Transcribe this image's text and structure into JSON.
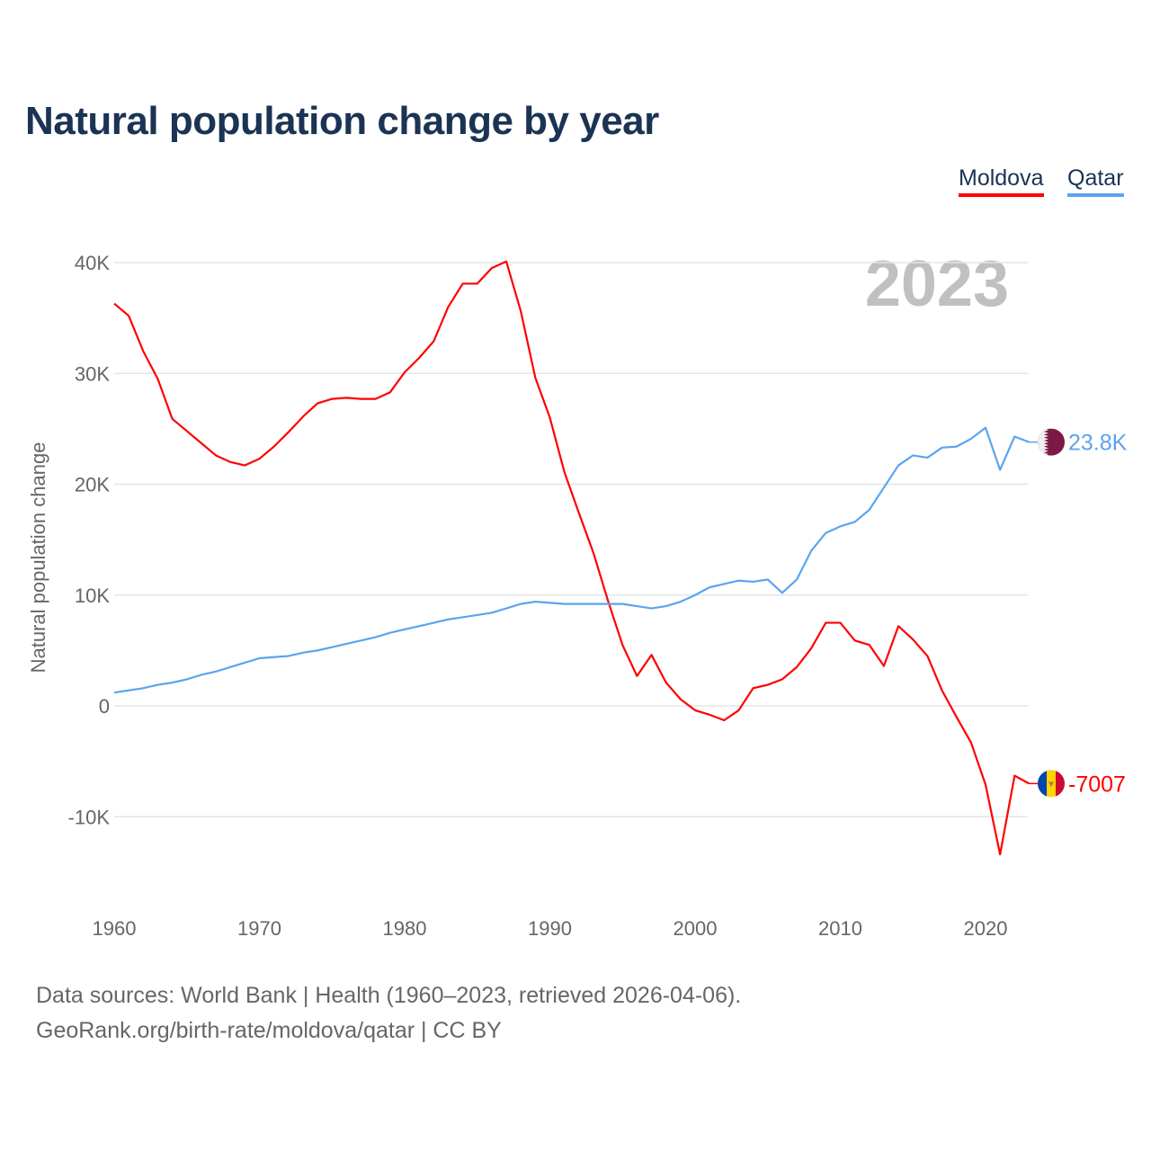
{
  "title": "Natural population change by year",
  "footer": {
    "line1": "Data sources: World Bank | Health (1960–2023, retrieved 2026-04-06).",
    "line2": "GeoRank.org/birth-rate/moldova/qatar | CC BY"
  },
  "chart_data": {
    "type": "line",
    "title": "Natural population change by year",
    "xlabel": "",
    "ylabel": "Natural population change",
    "year_watermark": "2023",
    "xlim": [
      1960,
      2023
    ],
    "ylim": [
      -15000,
      42000
    ],
    "grid": true,
    "legend_placement": "top-right",
    "x_ticks": [
      1960,
      1970,
      1980,
      1990,
      2000,
      2010,
      2020
    ],
    "x_tick_labels": [
      "1960",
      "1970",
      "1980",
      "1990",
      "2000",
      "2010",
      "2020"
    ],
    "y_ticks": [
      40000,
      30000,
      20000,
      10000,
      0,
      -10000
    ],
    "y_tick_labels": [
      "40K",
      "30K",
      "20K",
      "10K",
      "0",
      "-10K"
    ],
    "x": [
      1960,
      1961,
      1962,
      1963,
      1964,
      1965,
      1966,
      1967,
      1968,
      1969,
      1970,
      1971,
      1972,
      1973,
      1974,
      1975,
      1976,
      1977,
      1978,
      1979,
      1980,
      1981,
      1982,
      1983,
      1984,
      1985,
      1986,
      1987,
      1988,
      1989,
      1990,
      1991,
      1992,
      1993,
      1994,
      1995,
      1996,
      1997,
      1998,
      1999,
      2000,
      2001,
      2002,
      2003,
      2004,
      2005,
      2006,
      2007,
      2008,
      2009,
      2010,
      2011,
      2012,
      2013,
      2014,
      2015,
      2016,
      2017,
      2018,
      2019,
      2020,
      2021,
      2022,
      2023
    ],
    "series": [
      {
        "name": "Moldova",
        "color": "#ff0000",
        "end_label": "-7007",
        "flag": "moldova-flag",
        "values": [
          36300,
          35200,
          32000,
          29500,
          25900,
          24800,
          23700,
          22600,
          22000,
          21700,
          22300,
          23400,
          24700,
          26100,
          27300,
          27700,
          27800,
          27700,
          27700,
          28300,
          30100,
          31400,
          32900,
          36000,
          38100,
          38100,
          39500,
          40100,
          35600,
          29600,
          26000,
          21100,
          17400,
          13800,
          9500,
          5500,
          2700,
          4600,
          2100,
          600,
          -400,
          -800,
          -1300,
          -400,
          1600,
          1900,
          2400,
          3500,
          5200,
          7500,
          7500,
          5900,
          5500,
          3600,
          7200,
          6000,
          4500,
          1400,
          -1000,
          -3300,
          -7100,
          -13400,
          -6300,
          -7007
        ]
      },
      {
        "name": "Qatar",
        "color": "#5ba4ef",
        "end_label": "23.8K",
        "flag": "qatar-flag",
        "values": [
          1200,
          1400,
          1600,
          1900,
          2100,
          2400,
          2800,
          3100,
          3500,
          3900,
          4300,
          4400,
          4500,
          4800,
          5000,
          5300,
          5600,
          5900,
          6200,
          6600,
          6900,
          7200,
          7500,
          7800,
          8000,
          8200,
          8400,
          8800,
          9200,
          9400,
          9300,
          9200,
          9200,
          9200,
          9200,
          9200,
          9000,
          8800,
          9000,
          9400,
          10000,
          10700,
          11000,
          11300,
          11200,
          11400,
          10200,
          11400,
          14000,
          15600,
          16200,
          16600,
          17700,
          19700,
          21700,
          22600,
          22400,
          23300,
          23400,
          24100,
          25100,
          21300,
          24300,
          23800
        ]
      }
    ]
  }
}
